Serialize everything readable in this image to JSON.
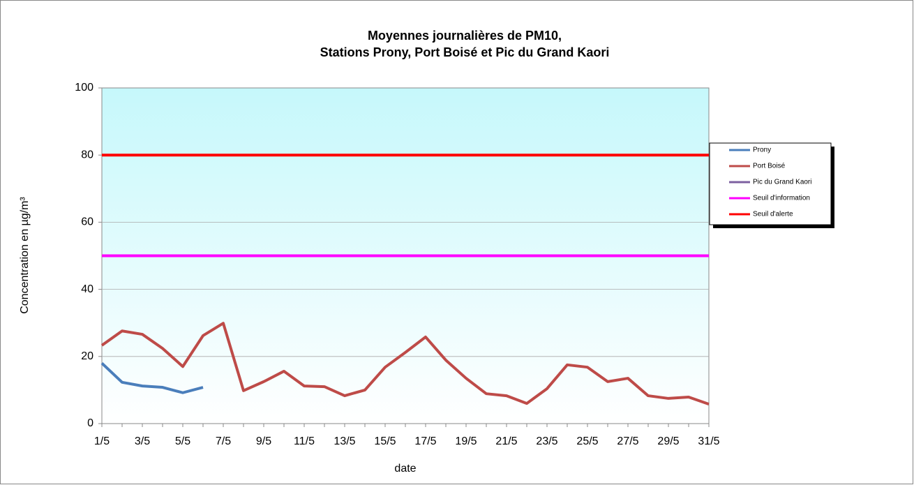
{
  "chart_data": {
    "type": "line",
    "title": "Moyennes journalières de PM10,",
    "subtitle": "Stations Prony, Port Boisé et Pic du Grand Kaori",
    "x_label": "date",
    "y_label": "Concentration en µg/m³",
    "categories": [
      "1/5",
      null,
      "3/5",
      null,
      "5/5",
      null,
      "7/5",
      null,
      "9/5",
      null,
      "11/5",
      null,
      "13/5",
      null,
      "15/5",
      null,
      "17/5",
      null,
      "19/5",
      null,
      "21/5",
      null,
      "23/5",
      null,
      "25/5",
      null,
      "27/5",
      null,
      "29/5",
      null,
      "31/5"
    ],
    "ylim": [
      0,
      100
    ],
    "yticks": [
      0,
      20,
      40,
      60,
      80,
      100
    ],
    "grid": true,
    "legend": "right",
    "series": [
      {
        "name": "Prony",
        "color": "#4a7ebb",
        "values": [
          18,
          12.3,
          11.2,
          10.8,
          9.2,
          10.8,
          null,
          null,
          null,
          null,
          null,
          null,
          null,
          null,
          null,
          null,
          null,
          null,
          null,
          null,
          null,
          null,
          null,
          null,
          null,
          null,
          null,
          null,
          null,
          null,
          null
        ]
      },
      {
        "name": "Port Boisé",
        "color": "#be4b48",
        "values": [
          23.3,
          27.6,
          26.6,
          22.4,
          17,
          26.2,
          29.9,
          9.8,
          12.5,
          15.6,
          11.2,
          11,
          8.3,
          10,
          16.8,
          21.2,
          25.8,
          18.9,
          13.5,
          8.9,
          8.3,
          6,
          10.4,
          17.5,
          16.8,
          12.5,
          13.5,
          8.3,
          7.5,
          7.9,
          5.8
        ]
      },
      {
        "name": "Pic du Grand Kaori",
        "color": "#7d60a0",
        "values": [
          null,
          null,
          null,
          null,
          null,
          null,
          null,
          null,
          null,
          null,
          null,
          null,
          null,
          null,
          null,
          null,
          null,
          null,
          null,
          null,
          null,
          null,
          null,
          null,
          null,
          null,
          null,
          null,
          null,
          null,
          null
        ]
      },
      {
        "name": "Seuil d'information",
        "color": "#ff00ff",
        "values": [
          50,
          50,
          50,
          50,
          50,
          50,
          50,
          50,
          50,
          50,
          50,
          50,
          50,
          50,
          50,
          50,
          50,
          50,
          50,
          50,
          50,
          50,
          50,
          50,
          50,
          50,
          50,
          50,
          50,
          50,
          50
        ]
      },
      {
        "name": "Seuil d'alerte",
        "color": "#ff0000",
        "values": [
          80,
          80,
          80,
          80,
          80,
          80,
          80,
          80,
          80,
          80,
          80,
          80,
          80,
          80,
          80,
          80,
          80,
          80,
          80,
          80,
          80,
          80,
          80,
          80,
          80,
          80,
          80,
          80,
          80,
          80,
          80
        ]
      }
    ]
  }
}
